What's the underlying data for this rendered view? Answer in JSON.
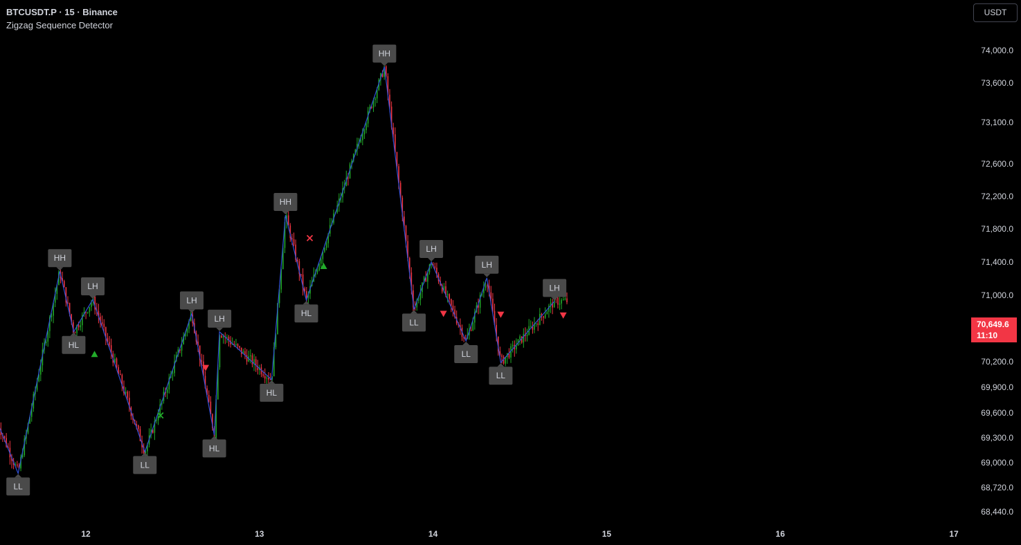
{
  "header": {
    "symbol": "BTCUSDT.P · 15 · Binance",
    "indicator": "Zigzag Sequence Detector"
  },
  "currency_button": "USDT",
  "last_price": {
    "value": "70,649.6",
    "countdown": "11:10"
  },
  "colors": {
    "background": "#000000",
    "up_candle": "#22ab2a",
    "down_candle": "#f23645",
    "zigzag": "#3050d8",
    "label_bg": "#4a4a4a",
    "label_text": "#d1d4dc",
    "axis_text": "#d1d4dc",
    "price_tag": "#f23645"
  },
  "chart_data": {
    "type": "line",
    "description_kind": "candlestick with zigzag pivots",
    "y_ticks": [
      "74,000.0",
      "73,600.0",
      "73,100.0",
      "72,600.0",
      "72,200.0",
      "71,800.0",
      "71,400.0",
      "71,000.0",
      "70,200.0",
      "69,900.0",
      "69,600.0",
      "69,300.0",
      "69,000.0",
      "68,720.0",
      "68,440.0"
    ],
    "y_tick_values": [
      74000,
      73600,
      73100,
      72600,
      72200,
      71800,
      71400,
      71000,
      70200,
      69900,
      69600,
      69300,
      69000,
      68720,
      68440
    ],
    "x_ticks": [
      {
        "label": "12",
        "day": 12
      },
      {
        "label": "13",
        "day": 13
      },
      {
        "label": "14",
        "day": 14
      },
      {
        "label": "15",
        "day": 15
      },
      {
        "label": "16",
        "day": 16
      },
      {
        "label": "17",
        "day": 17
      }
    ],
    "zigzag": [
      {
        "day": 11.49,
        "price": 69490
      },
      {
        "day": 11.61,
        "price": 68880,
        "label": "LL"
      },
      {
        "day": 11.85,
        "price": 71290,
        "label": "HH"
      },
      {
        "day": 11.93,
        "price": 70560,
        "label": "HL"
      },
      {
        "day": 12.04,
        "price": 70950,
        "label": "LH"
      },
      {
        "day": 12.34,
        "price": 69130,
        "label": "LL"
      },
      {
        "day": 12.61,
        "price": 70780,
        "label": "LH"
      },
      {
        "day": 12.74,
        "price": 69330,
        "label": "HL"
      },
      {
        "day": 12.77,
        "price": 70560,
        "label": "LH"
      },
      {
        "day": 13.07,
        "price": 69990,
        "label": "HL"
      },
      {
        "day": 13.15,
        "price": 71970,
        "label": "HH"
      },
      {
        "day": 13.27,
        "price": 70940,
        "label": "HL"
      },
      {
        "day": 13.72,
        "price": 73800,
        "label": "HH"
      },
      {
        "day": 13.89,
        "price": 70830,
        "label": "LL"
      },
      {
        "day": 13.99,
        "price": 71400,
        "label": "LH"
      },
      {
        "day": 14.19,
        "price": 70450,
        "label": "LL"
      },
      {
        "day": 14.31,
        "price": 71210,
        "label": "LH"
      },
      {
        "day": 14.39,
        "price": 70190,
        "label": "LL"
      },
      {
        "day": 14.7,
        "price": 70930,
        "label": "LH"
      }
    ],
    "markers": [
      {
        "kind": "triangle-up",
        "color": "#22ab2a",
        "day": 12.05,
        "price": 70290
      },
      {
        "kind": "cross",
        "color": "#22ab2a",
        "day": 12.43,
        "price": 69570
      },
      {
        "kind": "triangle-down",
        "color": "#f23645",
        "day": 12.69,
        "price": 70130
      },
      {
        "kind": "cross",
        "color": "#f23645",
        "day": 13.29,
        "price": 71690
      },
      {
        "kind": "triangle-up",
        "color": "#22ab2a",
        "day": 13.37,
        "price": 71350
      },
      {
        "kind": "triangle-down",
        "color": "#f23645",
        "day": 14.06,
        "price": 70780
      },
      {
        "kind": "triangle-down",
        "color": "#f23645",
        "day": 14.39,
        "price": 70770
      },
      {
        "kind": "triangle-down",
        "color": "#f23645",
        "day": 14.75,
        "price": 70760
      }
    ]
  }
}
